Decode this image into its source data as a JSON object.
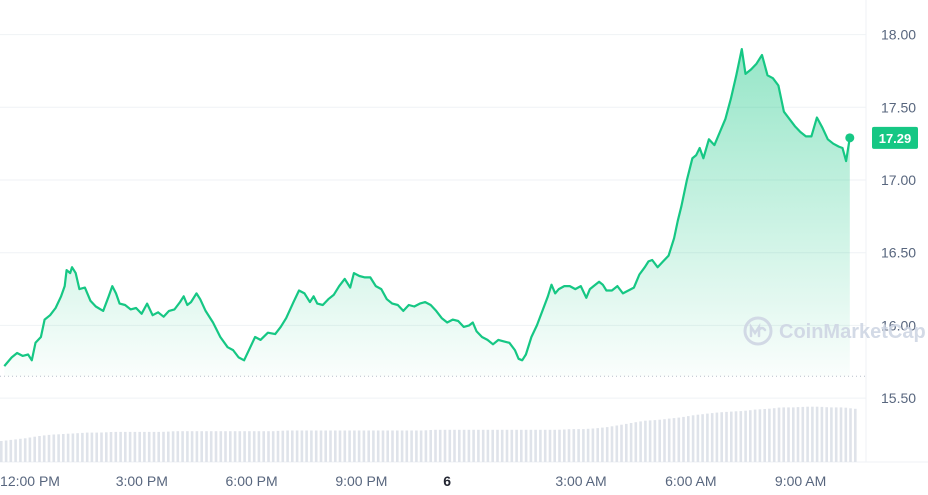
{
  "chart_data": {
    "type": "area",
    "title": "",
    "xlabel": "",
    "ylabel": "",
    "ylim": [
      15.3,
      18.2
    ],
    "y_ticks": [
      15.5,
      16.0,
      16.5,
      17.0,
      17.5,
      18.0
    ],
    "y_tick_labels": [
      "15.50",
      "16.00",
      "16.50",
      "17.00",
      "17.50",
      "18.00"
    ],
    "x_ticks": [
      {
        "label": "12:00 PM",
        "hour": 0,
        "bold": false
      },
      {
        "label": "3:00 PM",
        "hour": 3,
        "bold": false
      },
      {
        "label": "6:00 PM",
        "hour": 6,
        "bold": false
      },
      {
        "label": "9:00 PM",
        "hour": 9,
        "bold": false
      },
      {
        "label": "6",
        "hour": 12,
        "bold": true
      },
      {
        "label": "3:00 AM",
        "hour": 15,
        "bold": false
      },
      {
        "label": "6:00 AM",
        "hour": 18,
        "bold": false
      },
      {
        "label": "9:00 AM",
        "hour": 21,
        "bold": false
      }
    ],
    "x_range_hours": [
      0,
      23.3
    ],
    "current_price": "17.29",
    "baseline_value": 15.65,
    "grid": true,
    "series": [
      {
        "points": [
          [
            -0.1,
            15.72
          ],
          [
            0.1,
            15.78
          ],
          [
            0.25,
            15.81
          ],
          [
            0.4,
            15.79
          ],
          [
            0.55,
            15.8
          ],
          [
            0.65,
            15.76
          ],
          [
            0.75,
            15.88
          ],
          [
            0.9,
            15.92
          ],
          [
            1.0,
            16.04
          ],
          [
            1.15,
            16.07
          ],
          [
            1.3,
            16.12
          ],
          [
            1.45,
            16.2
          ],
          [
            1.55,
            16.27
          ],
          [
            1.6,
            16.38
          ],
          [
            1.7,
            16.36
          ],
          [
            1.75,
            16.4
          ],
          [
            1.85,
            16.36
          ],
          [
            1.95,
            16.25
          ],
          [
            2.1,
            16.26
          ],
          [
            2.25,
            16.17
          ],
          [
            2.4,
            16.13
          ],
          [
            2.6,
            16.1
          ],
          [
            2.75,
            16.2
          ],
          [
            2.85,
            16.27
          ],
          [
            2.95,
            16.22
          ],
          [
            3.05,
            16.15
          ],
          [
            3.2,
            16.14
          ],
          [
            3.35,
            16.11
          ],
          [
            3.5,
            16.12
          ],
          [
            3.65,
            16.08
          ],
          [
            3.8,
            16.15
          ],
          [
            3.95,
            16.07
          ],
          [
            4.1,
            16.09
          ],
          [
            4.25,
            16.06
          ],
          [
            4.4,
            16.1
          ],
          [
            4.55,
            16.11
          ],
          [
            4.7,
            16.16
          ],
          [
            4.8,
            16.2
          ],
          [
            4.9,
            16.14
          ],
          [
            5.0,
            16.16
          ],
          [
            5.15,
            16.22
          ],
          [
            5.25,
            16.18
          ],
          [
            5.4,
            16.1
          ],
          [
            5.6,
            16.02
          ],
          [
            5.8,
            15.92
          ],
          [
            6.0,
            15.85
          ],
          [
            6.15,
            15.83
          ],
          [
            6.3,
            15.78
          ],
          [
            6.45,
            15.76
          ],
          [
            6.6,
            15.84
          ],
          [
            6.75,
            15.92
          ],
          [
            6.9,
            15.9
          ],
          [
            7.1,
            15.95
          ],
          [
            7.3,
            15.94
          ],
          [
            7.45,
            15.99
          ],
          [
            7.6,
            16.05
          ],
          [
            7.8,
            16.16
          ],
          [
            7.95,
            16.24
          ],
          [
            8.1,
            16.22
          ],
          [
            8.25,
            16.16
          ],
          [
            8.35,
            16.2
          ],
          [
            8.45,
            16.15
          ],
          [
            8.6,
            16.14
          ],
          [
            8.75,
            16.18
          ],
          [
            8.9,
            16.21
          ],
          [
            9.05,
            16.27
          ],
          [
            9.2,
            16.32
          ],
          [
            9.35,
            16.26
          ],
          [
            9.45,
            16.36
          ],
          [
            9.6,
            16.34
          ],
          [
            9.75,
            16.33
          ],
          [
            9.9,
            16.33
          ],
          [
            10.05,
            16.27
          ],
          [
            10.2,
            16.25
          ],
          [
            10.35,
            16.18
          ],
          [
            10.5,
            16.15
          ],
          [
            10.65,
            16.14
          ],
          [
            10.8,
            16.1
          ],
          [
            10.95,
            16.14
          ],
          [
            11.1,
            16.13
          ],
          [
            11.25,
            16.15
          ],
          [
            11.4,
            16.16
          ],
          [
            11.55,
            16.14
          ],
          [
            11.7,
            16.1
          ],
          [
            11.85,
            16.05
          ],
          [
            12.0,
            16.02
          ],
          [
            12.15,
            16.04
          ],
          [
            12.3,
            16.03
          ],
          [
            12.45,
            15.99
          ],
          [
            12.6,
            16.0
          ],
          [
            12.7,
            16.02
          ],
          [
            12.8,
            15.96
          ],
          [
            12.95,
            15.92
          ],
          [
            13.1,
            15.9
          ],
          [
            13.25,
            15.87
          ],
          [
            13.4,
            15.9
          ],
          [
            13.55,
            15.89
          ],
          [
            13.7,
            15.88
          ],
          [
            13.85,
            15.83
          ],
          [
            13.95,
            15.77
          ],
          [
            14.05,
            15.76
          ],
          [
            14.15,
            15.8
          ],
          [
            14.3,
            15.92
          ],
          [
            14.45,
            16.0
          ],
          [
            14.6,
            16.1
          ],
          [
            14.75,
            16.2
          ],
          [
            14.85,
            16.28
          ],
          [
            14.95,
            16.22
          ],
          [
            15.05,
            16.25
          ],
          [
            15.2,
            16.27
          ],
          [
            15.35,
            16.27
          ],
          [
            15.5,
            16.25
          ],
          [
            15.65,
            16.27
          ],
          [
            15.8,
            16.19
          ],
          [
            15.9,
            16.25
          ],
          [
            16.0,
            16.27
          ],
          [
            16.15,
            16.3
          ],
          [
            16.25,
            16.28
          ],
          [
            16.35,
            16.24
          ],
          [
            16.5,
            16.24
          ],
          [
            16.65,
            16.27
          ],
          [
            16.8,
            16.22
          ],
          [
            16.95,
            16.24
          ],
          [
            17.1,
            16.26
          ],
          [
            17.25,
            16.35
          ],
          [
            17.4,
            16.4
          ],
          [
            17.5,
            16.44
          ],
          [
            17.6,
            16.45
          ],
          [
            17.75,
            16.4
          ],
          [
            17.9,
            16.44
          ],
          [
            18.05,
            16.48
          ],
          [
            18.2,
            16.6
          ],
          [
            18.3,
            16.72
          ],
          [
            18.4,
            16.82
          ],
          [
            18.55,
            17.0
          ],
          [
            18.7,
            17.15
          ],
          [
            18.8,
            17.17
          ],
          [
            18.9,
            17.22
          ],
          [
            19.0,
            17.15
          ],
          [
            19.15,
            17.28
          ],
          [
            19.3,
            17.24
          ],
          [
            19.45,
            17.33
          ],
          [
            19.6,
            17.42
          ],
          [
            19.75,
            17.56
          ],
          [
            19.9,
            17.72
          ],
          [
            20.05,
            17.9
          ],
          [
            20.15,
            17.73
          ],
          [
            20.3,
            17.76
          ],
          [
            20.45,
            17.8
          ],
          [
            20.6,
            17.86
          ],
          [
            20.75,
            17.72
          ],
          [
            20.9,
            17.7
          ],
          [
            21.05,
            17.65
          ],
          [
            21.2,
            17.47
          ],
          [
            21.35,
            17.42
          ],
          [
            21.5,
            17.37
          ],
          [
            21.65,
            17.33
          ],
          [
            21.8,
            17.3
          ],
          [
            21.95,
            17.3
          ],
          [
            22.1,
            17.43
          ],
          [
            22.25,
            17.36
          ],
          [
            22.4,
            17.28
          ],
          [
            22.55,
            17.25
          ],
          [
            22.7,
            17.23
          ],
          [
            22.8,
            17.22
          ],
          [
            22.9,
            17.13
          ],
          [
            23.0,
            17.29
          ]
        ]
      }
    ],
    "volume": {
      "values": [
        0.3,
        0.32,
        0.34,
        0.37,
        0.39,
        0.4,
        0.41,
        0.42,
        0.42,
        0.43,
        0.43,
        0.43,
        0.43,
        0.43,
        0.44,
        0.44,
        0.44,
        0.44,
        0.44,
        0.44,
        0.44,
        0.44,
        0.44,
        0.45,
        0.45,
        0.45,
        0.45,
        0.45,
        0.45,
        0.45,
        0.45,
        0.45,
        0.45,
        0.45,
        0.45,
        0.46,
        0.46,
        0.46,
        0.46,
        0.46,
        0.46,
        0.46,
        0.46,
        0.46,
        0.46,
        0.46,
        0.47,
        0.47,
        0.48,
        0.5,
        0.53,
        0.56,
        0.59,
        0.6,
        0.62,
        0.64,
        0.67,
        0.69,
        0.71,
        0.72,
        0.73,
        0.75,
        0.76,
        0.78,
        0.78,
        0.79,
        0.79,
        0.78,
        0.78,
        0.76
      ]
    }
  },
  "watermark": {
    "text": "CoinMarketCap"
  },
  "colors": {
    "line": "#16c784",
    "fill_top": "#16c784",
    "grid": "#eff2f5",
    "baseline_dots": "#b8bfca",
    "volume": "#dfe3ea",
    "price_tag_bg": "#16c784"
  }
}
